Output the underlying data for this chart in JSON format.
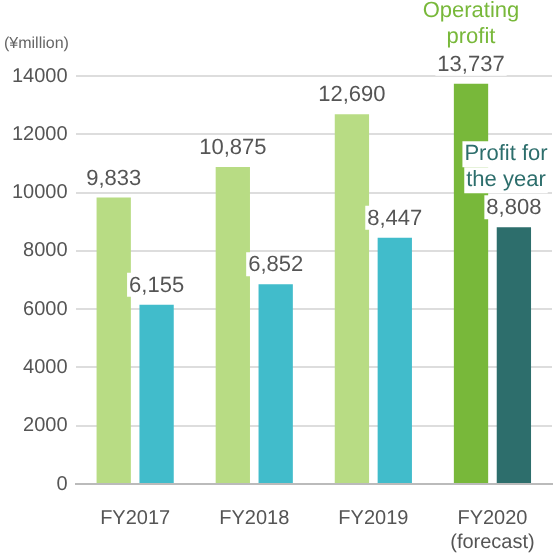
{
  "chart_data": {
    "type": "bar",
    "ylabel": "(¥million)",
    "categories": [
      "FY2017",
      "FY2018",
      "FY2019",
      "FY2020\n(forecast)"
    ],
    "series": [
      {
        "name": "Operating profit",
        "colors": [
          "#b8dc84",
          "#b8dc84",
          "#b8dc84",
          "#78b83a"
        ],
        "values": [
          9833,
          10875,
          12690,
          13737
        ],
        "value_labels": [
          "9,833",
          "10,875",
          "12,690",
          "13,737"
        ]
      },
      {
        "name": "Profit for the year",
        "colors": [
          "#41bccb",
          "#41bccb",
          "#41bccb",
          "#2d6e6c"
        ],
        "values": [
          6155,
          6852,
          8447,
          8808
        ],
        "value_labels": [
          "6,155",
          "6,852",
          "8,447",
          "8,808"
        ]
      }
    ],
    "ylim": [
      0,
      14000
    ],
    "yticks": [
      0,
      2000,
      4000,
      6000,
      8000,
      10000,
      12000,
      14000
    ],
    "grid": "y",
    "legend": false
  }
}
